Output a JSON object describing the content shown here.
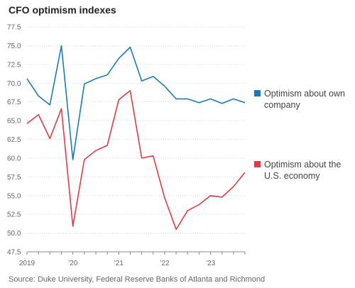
{
  "chart_data": {
    "type": "line",
    "title": "CFO optimism indexes",
    "source": "Source: Duke University, Federal Reserve Banks of Atlanta and Richmond",
    "ylim": [
      47.5,
      77.5
    ],
    "yticks": [
      "77.5",
      "75.0",
      "72.5",
      "70.0",
      "67.5",
      "65.0",
      "62.5",
      "60.0",
      "57.5",
      "55.0",
      "52.5",
      "50.0",
      "47.5"
    ],
    "xticks": [
      {
        "label": "2019",
        "x": 2019.0
      },
      {
        "label": "’20",
        "x": 2020.0
      },
      {
        "label": "’21",
        "x": 2021.0
      },
      {
        "label": "’22",
        "x": 2022.0
      },
      {
        "label": "’23",
        "x": 2023.0
      }
    ],
    "xlim": [
      2019.0,
      2023.75
    ],
    "x": [
      2019.0,
      2019.25,
      2019.5,
      2019.75,
      2020.0,
      2020.25,
      2020.5,
      2020.75,
      2021.0,
      2021.25,
      2021.5,
      2021.75,
      2022.0,
      2022.25,
      2022.5,
      2022.75,
      2023.0,
      2023.25,
      2023.5,
      2023.75
    ],
    "series": [
      {
        "name": "Optimism about own company",
        "color": "#1a7ab8",
        "values": [
          70.6,
          68.3,
          67.1,
          75.0,
          59.8,
          69.9,
          70.6,
          71.1,
          73.3,
          74.8,
          70.3,
          70.9,
          69.6,
          67.9,
          67.9,
          67.4,
          67.9,
          67.3,
          67.9,
          67.4
        ]
      },
      {
        "name": "Optimism about the U.S. economy",
        "color": "#e03a44",
        "values": [
          64.6,
          65.8,
          62.6,
          66.6,
          50.9,
          59.8,
          61.0,
          61.7,
          67.8,
          69.0,
          60.0,
          60.3,
          54.7,
          50.5,
          53.0,
          53.8,
          55.0,
          54.8,
          56.2,
          58.1
        ]
      }
    ],
    "legend_position": "right",
    "grid": true
  }
}
